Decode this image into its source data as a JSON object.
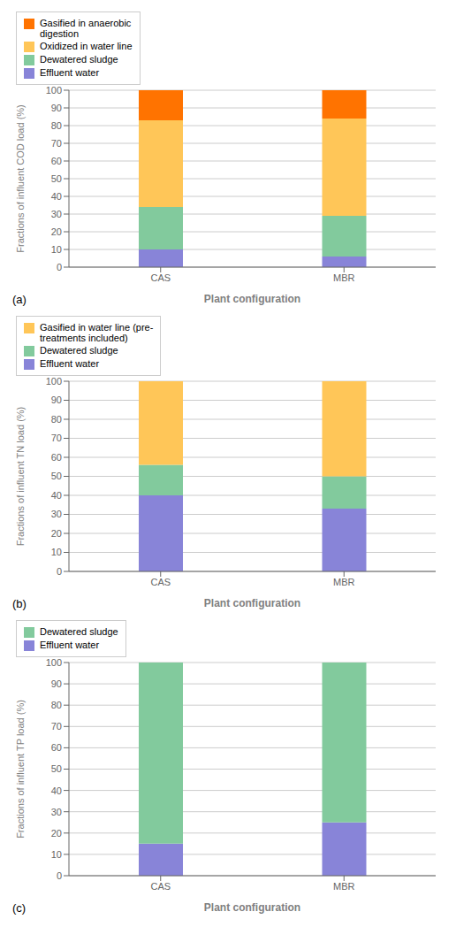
{
  "chart_data": [
    {
      "type": "bar",
      "stacked": true,
      "grid": true,
      "legend": "upper right",
      "annotation": "(a)",
      "ylabel": "Fractions of influent COD load (%)",
      "xlabel": "Plant configuration",
      "categories": [
        "CAS",
        "MBR"
      ],
      "series": [
        {
          "name": "Effluent water",
          "values": [
            10,
            6
          ]
        },
        {
          "name": "Dewatered sludge",
          "values": [
            24,
            23
          ]
        },
        {
          "name": "Oxidized in water line",
          "values": [
            49,
            55
          ]
        },
        {
          "name": "Gasified in anaerobic\ndigestion",
          "values": [
            17,
            16
          ]
        }
      ],
      "ylim": [
        0,
        100
      ],
      "yticks": [
        0,
        10,
        20,
        30,
        40,
        50,
        60,
        70,
        80,
        90,
        100
      ]
    },
    {
      "type": "bar",
      "stacked": true,
      "grid": true,
      "legend": "upper right",
      "annotation": "(b)",
      "ylabel": "Fractions of influent TN load (%)",
      "xlabel": "Plant configuration",
      "categories": [
        "CAS",
        "MBR"
      ],
      "series": [
        {
          "name": "Effluent water",
          "values": [
            40,
            33
          ]
        },
        {
          "name": "Dewatered sludge",
          "values": [
            16,
            17
          ]
        },
        {
          "name": "Gasified in water line (pre-\ntreatments included)",
          "values": [
            44,
            50
          ]
        }
      ],
      "ylim": [
        0,
        100
      ],
      "yticks": [
        0,
        10,
        20,
        30,
        40,
        50,
        60,
        70,
        80,
        90,
        100
      ]
    },
    {
      "type": "bar",
      "stacked": true,
      "grid": true,
      "legend": "upper right",
      "annotation": "(c)",
      "ylabel": "Fractions of influent TP load (%)",
      "xlabel": "Plant configuration",
      "categories": [
        "CAS",
        "MBR"
      ],
      "series": [
        {
          "name": "Effluent water",
          "values": [
            15,
            25
          ]
        },
        {
          "name": "Dewatered sludge",
          "values": [
            85,
            75
          ]
        }
      ],
      "ylim": [
        0,
        100
      ],
      "yticks": [
        0,
        10,
        20,
        30,
        40,
        50,
        60,
        70,
        80,
        90,
        100
      ]
    }
  ]
}
